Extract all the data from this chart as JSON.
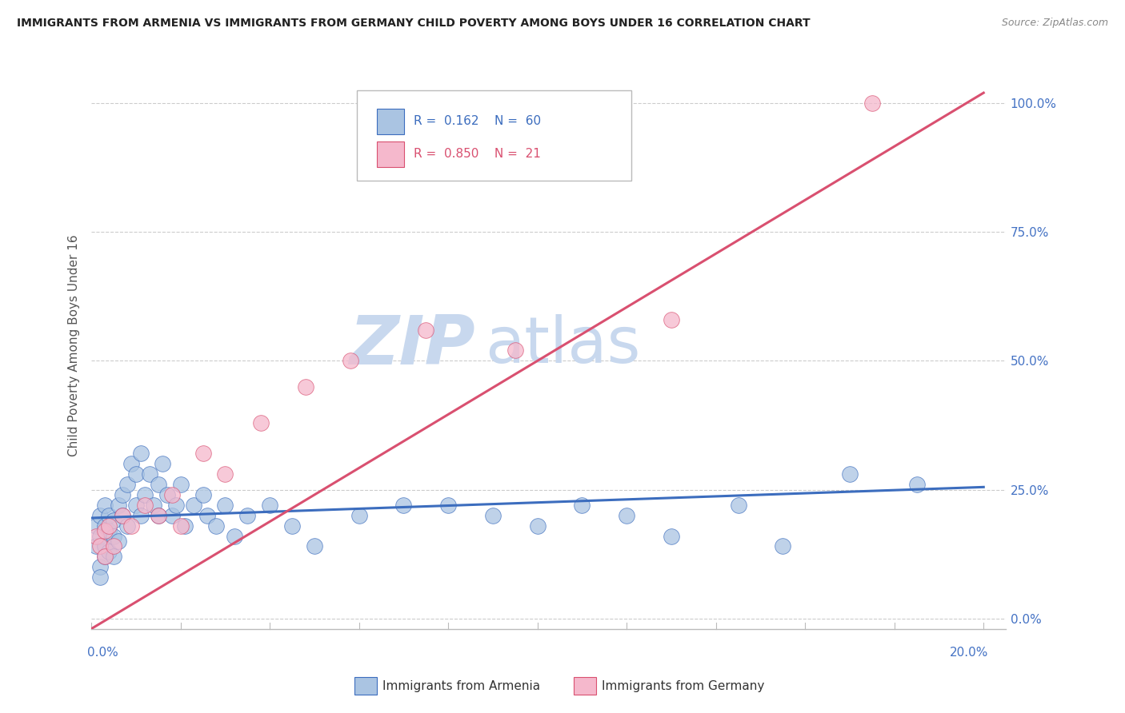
{
  "title": "IMMIGRANTS FROM ARMENIA VS IMMIGRANTS FROM GERMANY CHILD POVERTY AMONG BOYS UNDER 16 CORRELATION CHART",
  "source": "Source: ZipAtlas.com",
  "ylabel": "Child Poverty Among Boys Under 16",
  "legend_armenia": "Immigrants from Armenia",
  "legend_germany": "Immigrants from Germany",
  "R_armenia": 0.162,
  "N_armenia": 60,
  "R_germany": 0.85,
  "N_germany": 21,
  "color_armenia": "#aac4e2",
  "color_germany": "#f5b8cc",
  "line_color_armenia": "#3c6dbe",
  "line_color_germany": "#d95070",
  "line_color_right": "#4472c4",
  "watermark_zip": "ZIP",
  "watermark_atlas": "atlas",
  "watermark_color": "#c8d8ee",
  "background_color": "#ffffff",
  "xlim": [
    0.0,
    0.205
  ],
  "ylim": [
    -0.02,
    1.08
  ],
  "ytick_values": [
    0.0,
    0.25,
    0.5,
    0.75,
    1.0
  ],
  "ytick_labels": [
    "0.0%",
    "25.0%",
    "50.0%",
    "75.0%",
    "100.0%"
  ],
  "armenia_x": [
    0.001,
    0.001,
    0.002,
    0.002,
    0.002,
    0.002,
    0.003,
    0.003,
    0.003,
    0.003,
    0.004,
    0.004,
    0.004,
    0.005,
    0.005,
    0.005,
    0.006,
    0.006,
    0.007,
    0.007,
    0.008,
    0.008,
    0.009,
    0.01,
    0.01,
    0.011,
    0.011,
    0.012,
    0.013,
    0.014,
    0.015,
    0.015,
    0.016,
    0.017,
    0.018,
    0.019,
    0.02,
    0.021,
    0.023,
    0.025,
    0.026,
    0.028,
    0.03,
    0.032,
    0.035,
    0.04,
    0.045,
    0.05,
    0.06,
    0.07,
    0.08,
    0.09,
    0.1,
    0.11,
    0.12,
    0.13,
    0.145,
    0.155,
    0.17,
    0.185
  ],
  "armenia_y": [
    0.18,
    0.14,
    0.2,
    0.16,
    0.1,
    0.08,
    0.22,
    0.18,
    0.14,
    0.12,
    0.2,
    0.17,
    0.13,
    0.19,
    0.16,
    0.12,
    0.22,
    0.15,
    0.24,
    0.2,
    0.26,
    0.18,
    0.3,
    0.22,
    0.28,
    0.2,
    0.32,
    0.24,
    0.28,
    0.22,
    0.26,
    0.2,
    0.3,
    0.24,
    0.2,
    0.22,
    0.26,
    0.18,
    0.22,
    0.24,
    0.2,
    0.18,
    0.22,
    0.16,
    0.2,
    0.22,
    0.18,
    0.14,
    0.2,
    0.22,
    0.22,
    0.2,
    0.18,
    0.22,
    0.2,
    0.16,
    0.22,
    0.14,
    0.28,
    0.26
  ],
  "germany_x": [
    0.001,
    0.002,
    0.003,
    0.003,
    0.004,
    0.005,
    0.007,
    0.009,
    0.012,
    0.015,
    0.018,
    0.02,
    0.025,
    0.03,
    0.038,
    0.048,
    0.058,
    0.075,
    0.095,
    0.13,
    0.175
  ],
  "germany_y": [
    0.16,
    0.14,
    0.17,
    0.12,
    0.18,
    0.14,
    0.2,
    0.18,
    0.22,
    0.2,
    0.24,
    0.18,
    0.32,
    0.28,
    0.38,
    0.45,
    0.5,
    0.56,
    0.52,
    0.58,
    1.0
  ],
  "line_arm_x0": 0.0,
  "line_arm_y0": 0.195,
  "line_arm_x1": 0.2,
  "line_arm_y1": 0.255,
  "line_ger_x0": 0.0,
  "line_ger_y0": -0.02,
  "line_ger_x1": 0.2,
  "line_ger_y1": 1.02
}
